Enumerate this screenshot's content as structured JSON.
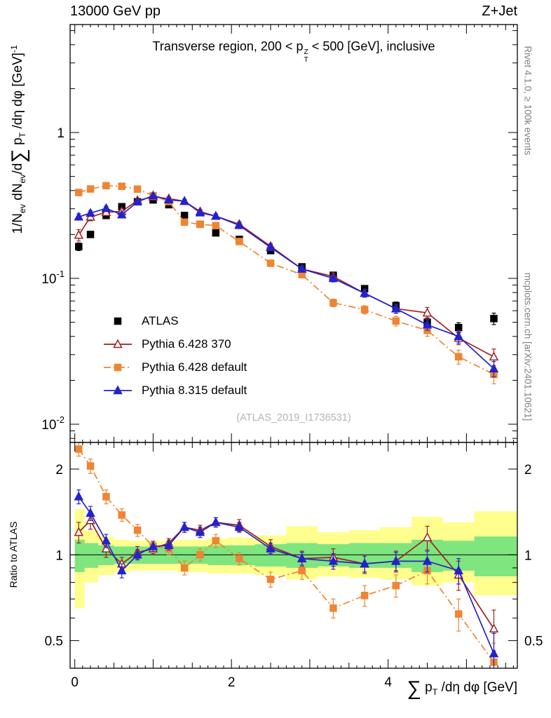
{
  "header": {
    "left": "13000 GeV pp",
    "right": "Z+Jet"
  },
  "watermark": "(ATLAS_2019_I1736531)",
  "side_notes": {
    "top": "Rivet 4.1.0, ≥ 100k events",
    "bottom": "mcplots.cern.ch [arXiv:2401.10621]"
  },
  "chart_data": {
    "type": "line",
    "title_rich": [
      {
        "t": "Transverse region, 200 < p",
        "sup": "Z",
        "sub": "T",
        "stack": true
      },
      {
        "t": " < 500 [GeV], inclusive"
      }
    ],
    "xlabel_rich": [
      {
        "t": "∑",
        "big": true
      },
      {
        "t": " p",
        "sub": "T"
      },
      {
        "t": " /dη dφ [GeV]"
      }
    ],
    "ylabel_main_rich": [
      {
        "t": "1/N",
        "sub": "ev"
      },
      {
        "t": " dN",
        "sub": "ev"
      },
      {
        "t": "/d"
      },
      {
        "t": "∑",
        "big": true
      },
      {
        "t": " p",
        "sub": "T"
      },
      {
        "t": " /dη dφ  [GeV]",
        "sup": "-1"
      }
    ],
    "ylabel_ratio": "Ratio to ATLAS",
    "xlim": [
      -0.06,
      5.65
    ],
    "ylim_main": [
      0.0075,
      5.5
    ],
    "ylim_ratio": [
      0.4,
      2.48
    ],
    "x_ticks": [
      {
        "v": 0,
        "label": "0"
      },
      {
        "v": 2,
        "label": "2"
      },
      {
        "v": 4,
        "label": "4"
      }
    ],
    "y_ticks_main": [
      {
        "v": 1,
        "base": "1",
        "exp": ""
      },
      {
        "v": 0.1,
        "base": "10",
        "exp": "-1"
      },
      {
        "v": 0.01,
        "base": "10",
        "exp": "-2"
      }
    ],
    "y_ticks_ratio": [
      {
        "v": 2,
        "label": "2"
      },
      {
        "v": 1,
        "label": "1"
      },
      {
        "v": 0.5,
        "label": "0.5"
      }
    ],
    "x": [
      0.05,
      0.2,
      0.4,
      0.6,
      0.8,
      1.0,
      1.2,
      1.4,
      1.6,
      1.8,
      2.1,
      2.5,
      2.9,
      3.3,
      3.7,
      4.1,
      4.5,
      4.9,
      5.35
    ],
    "bin_edges": [
      0,
      0.125,
      0.3,
      0.5,
      0.7,
      0.9,
      1.1,
      1.3,
      1.5,
      1.7,
      1.95,
      2.3,
      2.7,
      3.1,
      3.5,
      3.9,
      4.3,
      4.7,
      5.1,
      5.65
    ],
    "series": [
      {
        "id": "atlas",
        "name": "ATLAS",
        "color": "#000000",
        "marker": "square",
        "fill": true,
        "line": null,
        "y": [
          0.165,
          0.2,
          0.27,
          0.31,
          0.335,
          0.345,
          0.32,
          0.27,
          0.235,
          0.205,
          0.185,
          0.155,
          0.12,
          0.105,
          0.085,
          0.065,
          0.05,
          0.046,
          0.053
        ],
        "yerr_rel": [
          0.06,
          0.04,
          0.03,
          0.03,
          0.025,
          0.025,
          0.025,
          0.025,
          0.03,
          0.03,
          0.03,
          0.035,
          0.04,
          0.045,
          0.05,
          0.06,
          0.07,
          0.08,
          0.09
        ],
        "ratio": null,
        "ratio_err": null
      },
      {
        "id": "py6-370",
        "name": "Pythia 6.428 370",
        "color": "#a02020",
        "marker": "triangle",
        "fill": false,
        "line": "solid",
        "y": [
          0.198,
          0.264,
          0.284,
          0.288,
          0.342,
          0.362,
          0.352,
          0.338,
          0.287,
          0.267,
          0.235,
          0.166,
          0.116,
          0.103,
          0.079,
          0.062,
          0.058,
          0.039,
          0.029
        ],
        "yerr_rel": [
          0.09,
          0.06,
          0.05,
          0.04,
          0.035,
          0.03,
          0.03,
          0.03,
          0.035,
          0.035,
          0.04,
          0.045,
          0.05,
          0.055,
          0.06,
          0.07,
          0.09,
          0.1,
          0.13
        ],
        "ratio": [
          1.2,
          1.32,
          1.05,
          0.93,
          1.02,
          1.05,
          1.1,
          1.25,
          1.22,
          1.3,
          1.27,
          1.07,
          0.97,
          0.98,
          0.93,
          0.95,
          1.15,
          0.85,
          0.55
        ],
        "ratio_err": [
          0.1,
          0.09,
          0.07,
          0.05,
          0.05,
          0.04,
          0.04,
          0.05,
          0.05,
          0.05,
          0.06,
          0.06,
          0.06,
          0.07,
          0.07,
          0.08,
          0.11,
          0.1,
          0.09
        ]
      },
      {
        "id": "py6-def",
        "name": "Pythia 6.428 default",
        "color": "#ef8433",
        "marker": "square",
        "fill": true,
        "line": "dashdot",
        "y": [
          0.388,
          0.41,
          0.432,
          0.428,
          0.409,
          0.369,
          0.336,
          0.243,
          0.235,
          0.23,
          0.179,
          0.127,
          0.106,
          0.068,
          0.061,
          0.051,
          0.044,
          0.029,
          0.022
        ],
        "yerr_rel": [
          0.05,
          0.04,
          0.03,
          0.03,
          0.03,
          0.03,
          0.03,
          0.035,
          0.035,
          0.04,
          0.04,
          0.05,
          0.05,
          0.06,
          0.065,
          0.075,
          0.09,
          0.11,
          0.14
        ],
        "ratio": [
          2.35,
          2.05,
          1.6,
          1.38,
          1.22,
          1.07,
          1.05,
          0.9,
          1.0,
          1.12,
          0.97,
          0.82,
          0.88,
          0.65,
          0.72,
          0.78,
          0.88,
          0.62,
          0.42
        ],
        "ratio_err": [
          0.13,
          0.12,
          0.09,
          0.07,
          0.06,
          0.05,
          0.05,
          0.05,
          0.05,
          0.06,
          0.05,
          0.05,
          0.06,
          0.05,
          0.06,
          0.07,
          0.09,
          0.08,
          0.07
        ]
      },
      {
        "id": "py8-def",
        "name": "Pythia 8.315 default",
        "color": "#2323cc",
        "marker": "triangle",
        "fill": true,
        "line": "solid",
        "y": [
          0.264,
          0.28,
          0.302,
          0.273,
          0.335,
          0.369,
          0.346,
          0.338,
          0.282,
          0.267,
          0.231,
          0.163,
          0.116,
          0.1,
          0.079,
          0.062,
          0.048,
          0.04,
          0.024
        ],
        "yerr_rel": [
          0.05,
          0.04,
          0.035,
          0.03,
          0.03,
          0.03,
          0.03,
          0.03,
          0.035,
          0.035,
          0.04,
          0.045,
          0.05,
          0.055,
          0.06,
          0.07,
          0.08,
          0.1,
          0.12
        ],
        "ratio": [
          1.6,
          1.4,
          1.12,
          0.88,
          1.0,
          1.07,
          1.08,
          1.25,
          1.2,
          1.3,
          1.25,
          1.05,
          0.97,
          0.95,
          0.93,
          0.95,
          0.95,
          0.88,
          0.45
        ],
        "ratio_err": [
          0.09,
          0.08,
          0.06,
          0.05,
          0.04,
          0.04,
          0.04,
          0.05,
          0.05,
          0.05,
          0.05,
          0.05,
          0.05,
          0.06,
          0.06,
          0.07,
          0.08,
          0.09,
          0.08
        ]
      }
    ],
    "bands": {
      "yellow": {
        "color": "#ffff8e",
        "lo": [
          0.65,
          0.8,
          0.85,
          0.87,
          0.88,
          0.88,
          0.88,
          0.87,
          0.87,
          0.86,
          0.86,
          0.85,
          0.82,
          0.84,
          0.83,
          0.82,
          0.78,
          0.8,
          0.72
        ],
        "hi": [
          1.45,
          1.22,
          1.16,
          1.13,
          1.12,
          1.12,
          1.12,
          1.13,
          1.13,
          1.14,
          1.15,
          1.17,
          1.26,
          1.2,
          1.22,
          1.25,
          1.36,
          1.3,
          1.42
        ]
      },
      "green": {
        "color": "#7fe57f",
        "lo": [
          0.87,
          0.9,
          0.92,
          0.93,
          0.93,
          0.93,
          0.93,
          0.93,
          0.93,
          0.92,
          0.92,
          0.91,
          0.9,
          0.91,
          0.9,
          0.9,
          0.87,
          0.88,
          0.84
        ],
        "hi": [
          1.13,
          1.1,
          1.08,
          1.07,
          1.07,
          1.07,
          1.07,
          1.07,
          1.07,
          1.08,
          1.08,
          1.09,
          1.1,
          1.09,
          1.1,
          1.1,
          1.13,
          1.12,
          1.16
        ]
      }
    }
  }
}
